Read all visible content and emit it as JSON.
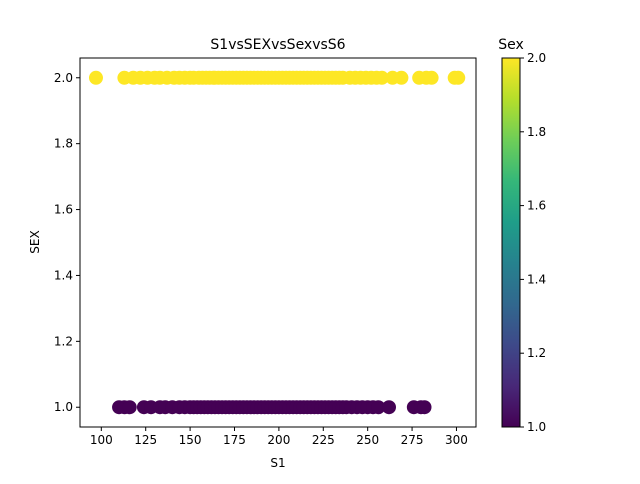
{
  "chart_data": [
    {
      "type": "scatter",
      "title": "S1vsSEXvsSexvsS6",
      "xlabel": "S1",
      "ylabel": "SEX",
      "xlim": [
        88,
        311
      ],
      "ylim": [
        0.94,
        2.06
      ],
      "x_ticks": [
        "100",
        "125",
        "150",
        "175",
        "200",
        "225",
        "250",
        "275",
        "300"
      ],
      "y_ticks": [
        "1.0",
        "1.2",
        "1.4",
        "1.6",
        "1.8",
        "2.0"
      ],
      "grid": false,
      "color_by": "Sex",
      "series": [
        {
          "y": 2.0,
          "color": "#fde725",
          "x": [
            97,
            113,
            118,
            122,
            126,
            130,
            133,
            137,
            141,
            144,
            147,
            150,
            152,
            155,
            157,
            159,
            161,
            163,
            164,
            166,
            168,
            170,
            172,
            174,
            176,
            178,
            180,
            182,
            184,
            186,
            188,
            190,
            192,
            194,
            196,
            198,
            200,
            202,
            204,
            206,
            208,
            210,
            212,
            214,
            216,
            218,
            220,
            222,
            224,
            226,
            228,
            230,
            232,
            234,
            236,
            240,
            243,
            246,
            249,
            252,
            255,
            258,
            264,
            269,
            279,
            283,
            286,
            299,
            301
          ]
        },
        {
          "y": 1.0,
          "color": "#440154",
          "x": [
            110,
            113,
            116,
            124,
            128,
            133,
            136,
            140,
            144,
            147,
            150,
            152,
            154,
            156,
            158,
            160,
            162,
            164,
            166,
            168,
            170,
            172,
            174,
            176,
            178,
            180,
            182,
            184,
            186,
            188,
            190,
            192,
            194,
            196,
            198,
            200,
            202,
            204,
            206,
            208,
            210,
            212,
            214,
            216,
            218,
            220,
            222,
            224,
            226,
            228,
            230,
            232,
            234,
            236,
            238,
            241,
            244,
            247,
            250,
            253,
            256,
            262,
            276,
            280,
            282
          ]
        }
      ]
    },
    {
      "type": "heatmap",
      "title": "Sex",
      "colormap": "viridis",
      "colors": [
        "#440154",
        "#482878",
        "#3e4989",
        "#31688e",
        "#26828e",
        "#1f9e89",
        "#35b779",
        "#6ece58",
        "#b5de2b",
        "#fde725"
      ],
      "range": [
        1.0,
        2.0
      ],
      "ticks": [
        "1.0",
        "1.2",
        "1.4",
        "1.6",
        "1.8",
        "2.0"
      ]
    }
  ]
}
